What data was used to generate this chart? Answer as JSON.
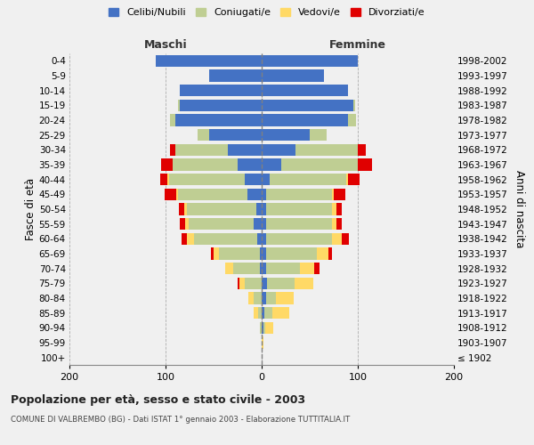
{
  "age_groups": [
    "100+",
    "95-99",
    "90-94",
    "85-89",
    "80-84",
    "75-79",
    "70-74",
    "65-69",
    "60-64",
    "55-59",
    "50-54",
    "45-49",
    "40-44",
    "35-39",
    "30-34",
    "25-29",
    "20-24",
    "15-19",
    "10-14",
    "5-9",
    "0-4"
  ],
  "birth_years": [
    "≤ 1902",
    "1903-1907",
    "1908-1912",
    "1913-1917",
    "1918-1922",
    "1923-1927",
    "1928-1932",
    "1933-1937",
    "1938-1942",
    "1943-1947",
    "1948-1952",
    "1953-1957",
    "1958-1962",
    "1963-1967",
    "1968-1972",
    "1973-1977",
    "1978-1982",
    "1983-1987",
    "1988-1992",
    "1993-1997",
    "1998-2002"
  ],
  "maschi": {
    "celibe": [
      0,
      0,
      0,
      0,
      0,
      0,
      2,
      2,
      5,
      8,
      6,
      15,
      18,
      25,
      35,
      55,
      90,
      85,
      85,
      55,
      110
    ],
    "coniugato": [
      0,
      0,
      2,
      4,
      8,
      18,
      28,
      42,
      65,
      68,
      72,
      72,
      78,
      68,
      55,
      12,
      5,
      2,
      0,
      0,
      0
    ],
    "vedovo": [
      0,
      0,
      0,
      4,
      6,
      5,
      8,
      6,
      8,
      4,
      3,
      2,
      2,
      0,
      0,
      0,
      0,
      0,
      0,
      0,
      0
    ],
    "divorziato": [
      0,
      0,
      0,
      0,
      0,
      2,
      0,
      3,
      5,
      5,
      5,
      12,
      8,
      12,
      5,
      0,
      0,
      0,
      0,
      0,
      0
    ]
  },
  "femmine": {
    "nubile": [
      0,
      0,
      2,
      3,
      5,
      6,
      5,
      5,
      5,
      5,
      5,
      5,
      8,
      20,
      35,
      50,
      90,
      95,
      90,
      65,
      100
    ],
    "coniugata": [
      0,
      0,
      2,
      8,
      10,
      28,
      35,
      52,
      68,
      68,
      68,
      68,
      80,
      80,
      65,
      18,
      8,
      2,
      0,
      0,
      0
    ],
    "vedova": [
      0,
      2,
      8,
      18,
      18,
      20,
      15,
      12,
      10,
      5,
      5,
      2,
      2,
      0,
      0,
      0,
      0,
      0,
      0,
      0,
      0
    ],
    "divorziata": [
      0,
      0,
      0,
      0,
      0,
      0,
      5,
      4,
      8,
      5,
      5,
      12,
      12,
      15,
      8,
      0,
      0,
      0,
      0,
      0,
      0
    ]
  },
  "colors": {
    "celibe": "#4472C4",
    "coniugato": "#BFCE93",
    "vedovo": "#FFD966",
    "divorziato": "#E00000"
  },
  "xlim": [
    -200,
    200
  ],
  "xticks": [
    -200,
    -100,
    0,
    100,
    200
  ],
  "xticklabels": [
    "200",
    "100",
    "0",
    "100",
    "200"
  ],
  "title": "Popolazione per età, sesso e stato civile - 2003",
  "subtitle": "COMUNE DI VALBREMBO (BG) - Dati ISTAT 1° gennaio 2003 - Elaborazione TUTTITALIA.IT",
  "ylabel_left": "Fasce di età",
  "ylabel_right": "Anni di nascita",
  "label_maschi": "Maschi",
  "label_femmine": "Femmine",
  "legend_labels": [
    "Celibi/Nubili",
    "Coniugati/e",
    "Vedovi/e",
    "Divorziati/e"
  ],
  "bg_color": "#f0f0f0"
}
